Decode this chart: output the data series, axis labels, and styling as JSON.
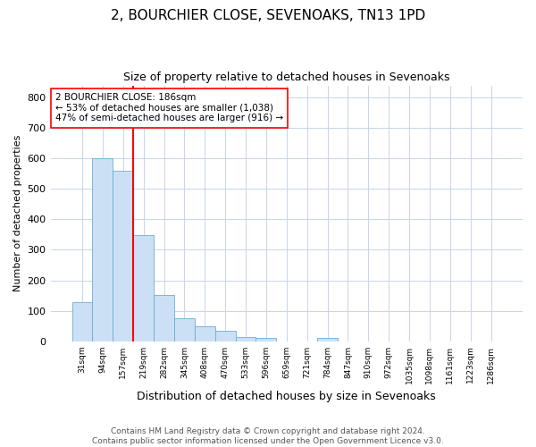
{
  "title": "2, BOURCHIER CLOSE, SEVENOAKS, TN13 1PD",
  "subtitle": "Size of property relative to detached houses in Sevenoaks",
  "xlabel": "Distribution of detached houses by size in Sevenoaks",
  "ylabel": "Number of detached properties",
  "categories": [
    "31sqm",
    "94sqm",
    "157sqm",
    "219sqm",
    "282sqm",
    "345sqm",
    "408sqm",
    "470sqm",
    "533sqm",
    "596sqm",
    "659sqm",
    "721sqm",
    "784sqm",
    "847sqm",
    "910sqm",
    "972sqm",
    "1035sqm",
    "1098sqm",
    "1161sqm",
    "1223sqm",
    "1286sqm"
  ],
  "values": [
    128,
    600,
    560,
    348,
    152,
    75,
    50,
    35,
    14,
    12,
    0,
    0,
    10,
    0,
    0,
    0,
    0,
    0,
    0,
    0,
    0
  ],
  "bar_color": "#cce0f5",
  "bar_edge_color": "#6aaed6",
  "red_line_x": 2.5,
  "annotation_text": "2 BOURCHIER CLOSE: 186sqm\n← 53% of detached houses are smaller (1,038)\n47% of semi-detached houses are larger (916) →",
  "annotation_box_color": "white",
  "annotation_box_edge": "red",
  "red_line_color": "red",
  "ylim": [
    0,
    840
  ],
  "yticks": [
    0,
    100,
    200,
    300,
    400,
    500,
    600,
    700,
    800
  ],
  "footer": "Contains HM Land Registry data © Crown copyright and database right 2024.\nContains public sector information licensed under the Open Government Licence v3.0.",
  "bg_color": "white",
  "grid_color": "#c8d4e8"
}
